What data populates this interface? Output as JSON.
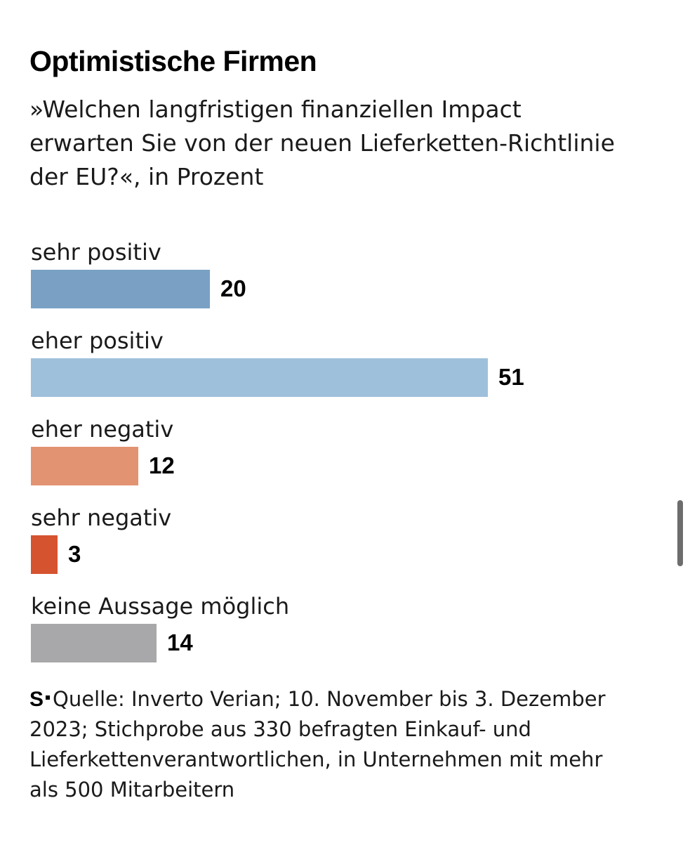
{
  "title": "Optimistische Firmen",
  "subtitle_lines": [
    "»Welchen langfristigen finanziellen Impact",
    "erwarten Sie von der neuen Lieferketten-Richtlinie",
    "der EU?«, in Prozent"
  ],
  "chart_data": {
    "type": "bar",
    "orientation": "horizontal",
    "unit": "Prozent",
    "categories": [
      "sehr positiv",
      "eher positiv",
      "eher negativ",
      "sehr negativ",
      "keine Aussage möglich"
    ],
    "values": [
      20,
      51,
      12,
      3,
      14
    ],
    "colors": [
      "#7aa1c4",
      "#9fc0da",
      "#e29372",
      "#d5532f",
      "#a8a8aa"
    ],
    "xlim": [
      0,
      51
    ],
    "grid": false,
    "legend": "none"
  },
  "source": {
    "logo_letter": "S",
    "lines": [
      "Quelle: Inverto Verian; 10. November bis 3. Dezember",
      "2023; Stichprobe aus 330 befragten Einkauf- und",
      "Lieferkettenverantwortlichen, in Unternehmen mit mehr",
      "als 500 Mitarbeitern"
    ]
  }
}
